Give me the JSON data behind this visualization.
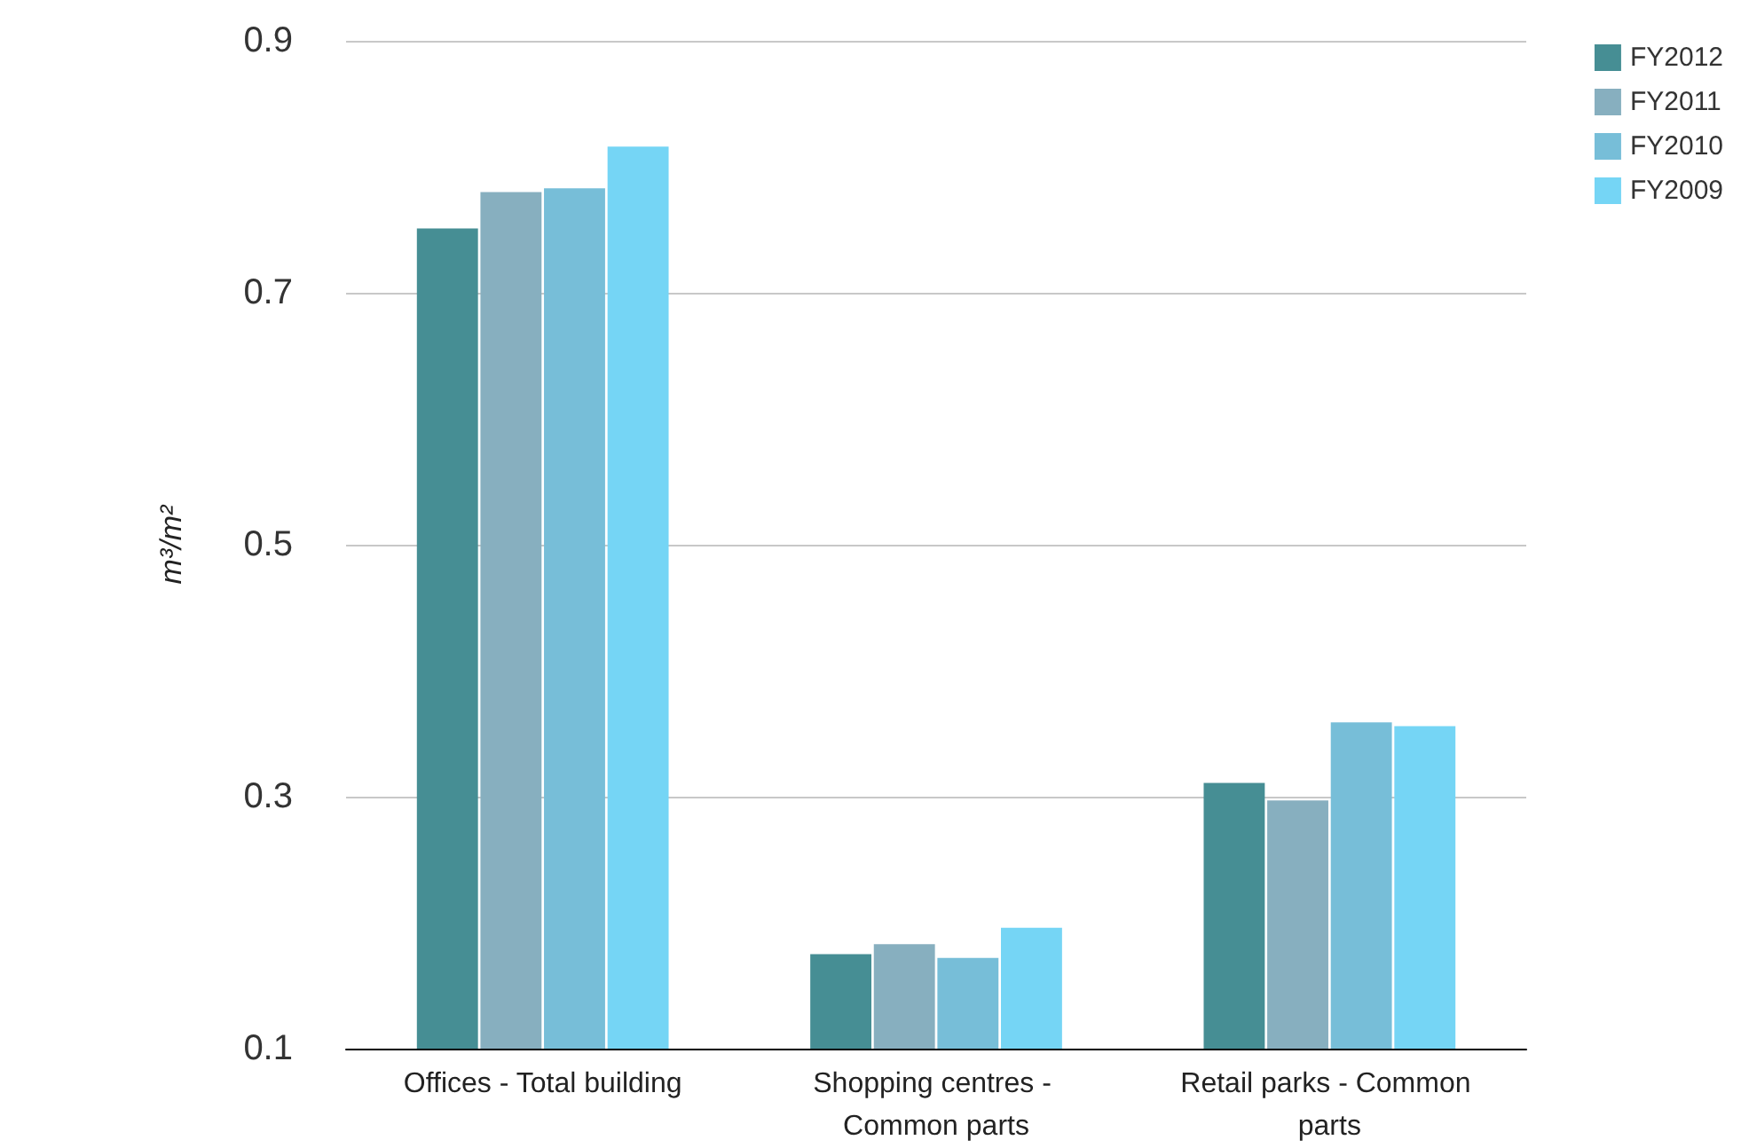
{
  "chart_data": {
    "type": "bar",
    "ylabel": "m³/m²",
    "categories": [
      "Offices - Total building",
      "Shopping centres - Common parts",
      "Retail parks - Common parts"
    ],
    "series": [
      {
        "name": "FY2012",
        "color": "#468e94",
        "values": [
          0.751,
          0.175,
          0.311
        ]
      },
      {
        "name": "FY2011",
        "color": "#87afbf",
        "values": [
          0.78,
          0.183,
          0.297
        ]
      },
      {
        "name": "FY2010",
        "color": "#77bed8",
        "values": [
          0.783,
          0.172,
          0.359
        ]
      },
      {
        "name": "FY2009",
        "color": "#75d5f5",
        "values": [
          0.816,
          0.196,
          0.356
        ]
      }
    ],
    "ylim": [
      0.1,
      0.9
    ],
    "yticks": [
      0.1,
      0.3,
      0.5,
      0.7,
      0.9
    ],
    "grid": "y",
    "legend": "top right"
  }
}
